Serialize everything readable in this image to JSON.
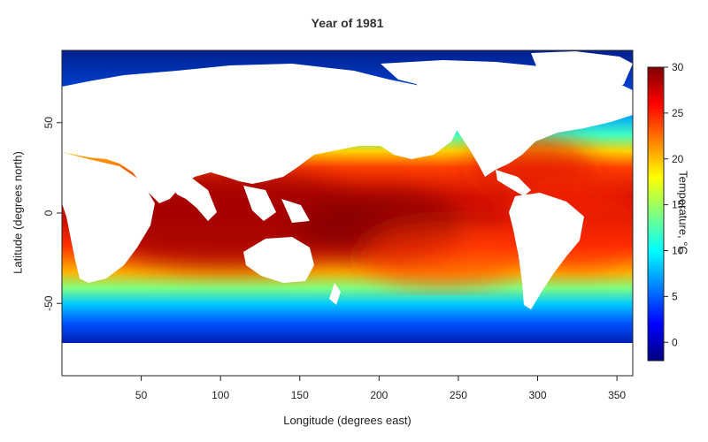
{
  "chart_data": {
    "type": "heatmap",
    "title": "Year of 1981",
    "xlabel": "Longitude (degrees east)",
    "ylabel": "Latitude (degrees north)",
    "xlim": [
      0,
      360
    ],
    "ylim": [
      -90,
      90
    ],
    "x_ticks": [
      50,
      100,
      150,
      200,
      250,
      300,
      350
    ],
    "y_ticks": [
      -50,
      0,
      50
    ],
    "colorbar": {
      "label": "Temperature, °C",
      "range": [
        -2,
        30
      ],
      "ticks": [
        0,
        5,
        10,
        15,
        20,
        25,
        30
      ],
      "colors": [
        "#00007f",
        "#0000ff",
        "#007fff",
        "#00ffff",
        "#7fff7f",
        "#ffff00",
        "#ff7f00",
        "#ff0000",
        "#7f0000"
      ]
    },
    "land_color": "#ffffff"
  }
}
